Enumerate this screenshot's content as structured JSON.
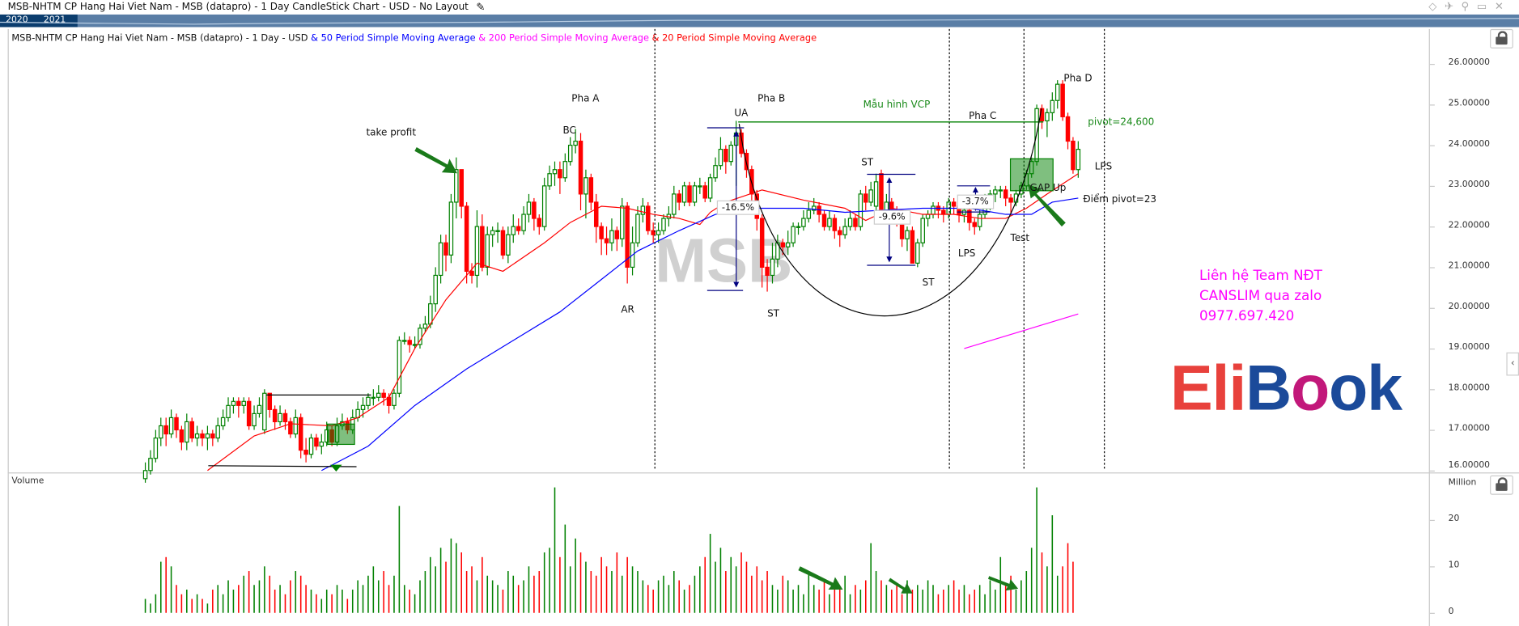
{
  "window": {
    "title": "MSB-NHTM CP Hang Hai Viet Nam - MSB (datapro) - 1 Day CandleStick Chart - USD - No Layout",
    "edit_icon": "pencil-icon",
    "toolbar_icons": [
      "diamond-icon",
      "pin-icon",
      "settings-icon",
      "window-icon",
      "close-icon"
    ]
  },
  "navigator": {
    "years": [
      "2020",
      "2021"
    ]
  },
  "legend": {
    "base": "MSB-NHTM CP Hang Hai Viet Nam - MSB (datapro) - 1 Day - USD",
    "ma50": "& 50 Period Simple Moving Average",
    "ma200": "& 200 Period Simple Moving Average",
    "ma20": "& 20 Period Simple Moving Average"
  },
  "colors": {
    "up": "#008000",
    "down": "#ff0000",
    "ma50": "#0000ff",
    "ma200": "#ff00ff",
    "ma20": "#ff0000",
    "nav_dark": "#0b3d6e",
    "nav": "#5a7ea6",
    "logo_red": "#e8413c",
    "logo_blue": "#1b4a9a",
    "logo_pink": "#c2187a"
  },
  "volume_panel": {
    "label": "Volume",
    "unit": "Million"
  },
  "annotations": {
    "take_profit": "take profit",
    "pha_a": "Pha A",
    "bc": "BC",
    "ar": "AR",
    "pha_b": "Pha B",
    "ua": "UA",
    "st1": "ST",
    "st2": "ST",
    "st3": "ST",
    "vcp": "Mẫu hình VCP",
    "pha_c": "Pha C",
    "pct1": "-16.5%",
    "pct2": "-9.6%",
    "pct3": "-3.7%",
    "lps1": "LPS",
    "test": "Test",
    "gap_up": "GAP Up",
    "pha_d": "Pha D",
    "pivot": "pivot=24,600",
    "lps2": "LPS",
    "pivot23": "Điểm pivot=23"
  },
  "watermark": "MSB",
  "logo": {
    "text": "EliBook",
    "part1": "Eli",
    "part2": "B",
    "part3": "o",
    "part4": "ok"
  },
  "contact": {
    "line1": "Liên hệ Team NĐT",
    "line2": "CANSLIM qua zalo",
    "line3": "0977.697.420"
  },
  "chart_data": {
    "type": "candlestick",
    "title": "MSB-NHTM CP Hang Hai Viet Nam - MSB (datapro) - 1 Day - USD",
    "ylim": [
      16,
      26.6
    ],
    "y_ticks": [
      "26.00000",
      "25.00000",
      "24.00000",
      "23.00000",
      "22.00000",
      "21.00000",
      "20.00000",
      "19.00000",
      "18.00000",
      "17.00000",
      "16.00000"
    ],
    "y_tick_values": [
      26,
      25,
      24,
      23,
      22,
      21,
      20,
      19,
      18,
      17,
      16
    ],
    "volume_ylim": [
      0,
      30
    ],
    "volume_ticks": [
      "20",
      "10",
      "0"
    ],
    "volume_tick_values": [
      20,
      10,
      0
    ],
    "ohlc": [
      [
        15.8,
        16.2,
        15.7,
        16.0
      ],
      [
        16.0,
        16.5,
        15.9,
        16.3
      ],
      [
        16.3,
        17.0,
        16.2,
        16.8
      ],
      [
        16.8,
        17.3,
        16.6,
        17.1
      ],
      [
        17.1,
        17.3,
        16.6,
        16.9
      ],
      [
        16.9,
        17.5,
        16.8,
        17.3
      ],
      [
        17.3,
        17.4,
        16.8,
        17.0
      ],
      [
        17.0,
        17.1,
        16.5,
        16.7
      ],
      [
        16.7,
        17.4,
        16.5,
        17.2
      ],
      [
        17.2,
        17.3,
        16.7,
        16.8
      ],
      [
        16.8,
        17.1,
        16.6,
        16.9
      ],
      [
        16.9,
        17.0,
        16.6,
        16.8
      ],
      [
        16.8,
        17.1,
        16.5,
        16.9
      ],
      [
        16.9,
        17.0,
        16.6,
        16.8
      ],
      [
        16.8,
        17.3,
        16.7,
        17.1
      ],
      [
        17.1,
        17.5,
        17.0,
        17.3
      ],
      [
        17.3,
        17.8,
        17.2,
        17.6
      ],
      [
        17.6,
        17.8,
        17.4,
        17.7
      ],
      [
        17.7,
        17.8,
        17.3,
        17.6
      ],
      [
        17.6,
        17.8,
        17.4,
        17.7
      ],
      [
        17.7,
        17.8,
        17.0,
        17.1
      ],
      [
        17.1,
        17.6,
        17.0,
        17.4
      ],
      [
        17.4,
        17.8,
        17.3,
        17.6
      ],
      [
        17.0,
        18.0,
        16.9,
        17.9
      ],
      [
        17.9,
        17.9,
        17.3,
        17.5
      ],
      [
        17.5,
        17.6,
        17.0,
        17.2
      ],
      [
        17.2,
        17.6,
        17.1,
        17.4
      ],
      [
        17.4,
        17.5,
        17.0,
        17.2
      ],
      [
        17.2,
        17.3,
        16.8,
        16.9
      ],
      [
        16.9,
        17.5,
        16.8,
        17.3
      ],
      [
        17.3,
        17.4,
        16.3,
        16.5
      ],
      [
        16.5,
        16.8,
        16.2,
        16.4
      ],
      [
        16.4,
        16.9,
        16.3,
        16.8
      ],
      [
        16.8,
        16.9,
        16.5,
        16.6
      ],
      [
        16.6,
        16.9,
        16.4,
        16.7
      ],
      [
        16.7,
        17.2,
        16.6,
        17.0
      ],
      [
        17.0,
        17.1,
        16.6,
        16.7
      ],
      [
        16.7,
        17.3,
        16.6,
        17.1
      ],
      [
        17.1,
        17.4,
        17.0,
        17.2
      ],
      [
        17.2,
        17.3,
        16.9,
        17.0
      ],
      [
        17.0,
        17.5,
        16.9,
        17.3
      ],
      [
        17.3,
        17.7,
        17.2,
        17.5
      ],
      [
        17.5,
        17.8,
        17.3,
        17.6
      ],
      [
        17.6,
        17.9,
        17.5,
        17.8
      ],
      [
        17.8,
        18.0,
        17.6,
        17.8
      ],
      [
        17.8,
        18.1,
        17.7,
        17.9
      ],
      [
        17.9,
        18.0,
        17.6,
        17.8
      ],
      [
        17.8,
        17.9,
        17.4,
        17.6
      ],
      [
        17.6,
        18.0,
        17.5,
        17.9
      ],
      [
        17.9,
        19.3,
        17.8,
        19.2
      ],
      [
        19.2,
        19.4,
        19.1,
        19.2
      ],
      [
        19.2,
        19.3,
        18.9,
        19.1
      ],
      [
        19.1,
        19.3,
        19.0,
        19.1
      ],
      [
        19.1,
        19.6,
        19.0,
        19.5
      ],
      [
        19.5,
        19.8,
        19.4,
        19.6
      ],
      [
        19.6,
        20.3,
        19.5,
        20.1
      ],
      [
        20.1,
        21.0,
        19.9,
        20.8
      ],
      [
        20.8,
        21.8,
        20.6,
        21.6
      ],
      [
        21.6,
        21.8,
        20.9,
        21.3
      ],
      [
        21.3,
        22.8,
        21.1,
        22.6
      ],
      [
        22.6,
        23.7,
        22.2,
        23.4
      ],
      [
        23.4,
        23.4,
        22.2,
        22.5
      ],
      [
        22.5,
        22.6,
        20.6,
        20.9
      ],
      [
        20.9,
        21.1,
        20.6,
        20.8
      ],
      [
        20.8,
        22.4,
        20.5,
        22.0
      ],
      [
        22.0,
        22.3,
        20.9,
        21.0
      ],
      [
        21.0,
        22.0,
        20.8,
        21.8
      ],
      [
        21.8,
        22.0,
        21.5,
        21.9
      ],
      [
        21.9,
        22.1,
        21.6,
        21.9
      ],
      [
        21.9,
        22.0,
        21.2,
        21.3
      ],
      [
        21.3,
        22.0,
        21.1,
        21.8
      ],
      [
        21.8,
        22.3,
        21.6,
        22.0
      ],
      [
        22.0,
        22.2,
        21.8,
        21.9
      ],
      [
        21.9,
        22.5,
        21.8,
        22.3
      ],
      [
        22.3,
        22.8,
        22.1,
        22.6
      ],
      [
        22.6,
        22.7,
        21.9,
        22.2
      ],
      [
        22.2,
        22.3,
        21.8,
        22.0
      ],
      [
        22.0,
        23.2,
        21.9,
        23.0
      ],
      [
        23.0,
        23.5,
        22.9,
        23.3
      ],
      [
        23.3,
        23.6,
        23.0,
        23.4
      ],
      [
        23.4,
        23.6,
        22.8,
        23.2
      ],
      [
        23.2,
        23.8,
        23.1,
        23.6
      ],
      [
        23.6,
        24.2,
        23.5,
        24.0
      ],
      [
        24.0,
        24.4,
        23.8,
        24.1
      ],
      [
        24.1,
        24.3,
        22.4,
        22.8
      ],
      [
        22.8,
        23.4,
        22.2,
        23.2
      ],
      [
        23.2,
        23.3,
        22.4,
        22.6
      ],
      [
        22.6,
        22.8,
        21.6,
        22.0
      ],
      [
        22.0,
        22.1,
        21.3,
        21.7
      ],
      [
        21.7,
        22.0,
        21.3,
        21.6
      ],
      [
        21.6,
        22.2,
        21.4,
        21.9
      ],
      [
        21.9,
        22.0,
        21.4,
        21.7
      ],
      [
        21.7,
        22.7,
        21.5,
        22.5
      ],
      [
        22.5,
        22.6,
        20.6,
        21.0
      ],
      [
        21.0,
        22.0,
        20.8,
        21.6
      ],
      [
        21.6,
        22.5,
        21.5,
        22.3
      ],
      [
        22.3,
        22.7,
        22.1,
        22.5
      ],
      [
        22.5,
        22.6,
        21.8,
        21.9
      ],
      [
        21.9,
        22.1,
        21.6,
        21.8
      ],
      [
        21.8,
        22.1,
        21.6,
        21.9
      ],
      [
        21.9,
        22.3,
        21.8,
        22.2
      ],
      [
        22.2,
        22.5,
        22.0,
        22.3
      ],
      [
        22.3,
        23.0,
        22.2,
        22.8
      ],
      [
        22.8,
        22.9,
        22.4,
        22.6
      ],
      [
        22.6,
        23.1,
        22.5,
        23.0
      ],
      [
        23.0,
        23.1,
        22.5,
        22.6
      ],
      [
        22.6,
        23.1,
        22.5,
        23.0
      ],
      [
        23.0,
        23.2,
        22.8,
        23.0
      ],
      [
        23.0,
        23.1,
        22.6,
        22.7
      ],
      [
        22.7,
        23.3,
        22.6,
        23.2
      ],
      [
        23.2,
        23.7,
        23.1,
        23.5
      ],
      [
        23.5,
        24.2,
        23.4,
        23.9
      ],
      [
        23.9,
        24.0,
        23.3,
        23.6
      ],
      [
        23.6,
        24.1,
        23.5,
        24.0
      ],
      [
        24.0,
        24.6,
        23.0,
        24.3
      ],
      [
        24.3,
        24.4,
        23.7,
        23.8
      ],
      [
        23.8,
        23.9,
        23.2,
        23.4
      ],
      [
        23.4,
        23.5,
        22.6,
        22.8
      ],
      [
        22.8,
        22.9,
        21.9,
        22.2
      ],
      [
        22.2,
        22.3,
        20.5,
        21.0
      ],
      [
        21.0,
        21.2,
        20.4,
        20.8
      ],
      [
        20.8,
        21.6,
        20.6,
        21.2
      ],
      [
        21.2,
        21.8,
        21.0,
        21.6
      ],
      [
        21.6,
        21.7,
        21.3,
        21.5
      ],
      [
        21.5,
        21.9,
        21.3,
        21.6
      ],
      [
        21.6,
        22.1,
        21.5,
        22.0
      ],
      [
        22.0,
        22.1,
        21.8,
        22.0
      ],
      [
        22.0,
        22.4,
        21.9,
        22.2
      ],
      [
        22.2,
        22.6,
        22.1,
        22.4
      ],
      [
        22.4,
        22.7,
        22.3,
        22.5
      ],
      [
        22.5,
        22.6,
        22.1,
        22.3
      ],
      [
        22.3,
        22.4,
        21.9,
        22.0
      ],
      [
        22.0,
        22.4,
        21.9,
        22.2
      ],
      [
        22.2,
        22.3,
        21.7,
        21.9
      ],
      [
        21.9,
        22.0,
        21.5,
        21.8
      ],
      [
        21.8,
        22.2,
        21.7,
        22.0
      ],
      [
        22.0,
        22.4,
        21.9,
        22.2
      ],
      [
        22.2,
        22.3,
        21.9,
        22.0
      ],
      [
        22.0,
        22.9,
        21.9,
        22.8
      ],
      [
        22.8,
        23.0,
        22.4,
        22.6
      ],
      [
        22.6,
        23.1,
        22.5,
        22.9
      ],
      [
        22.5,
        23.3,
        22.4,
        23.1
      ],
      [
        23.3,
        23.4,
        22.3,
        22.4
      ],
      [
        22.4,
        22.8,
        22.3,
        22.6
      ],
      [
        22.6,
        22.7,
        22.2,
        22.3
      ],
      [
        22.3,
        22.5,
        22.0,
        22.2
      ],
      [
        22.2,
        22.3,
        21.5,
        21.7
      ],
      [
        21.7,
        22.0,
        21.4,
        21.9
      ],
      [
        21.9,
        22.0,
        21.1,
        21.1
      ],
      [
        21.1,
        21.7,
        21.0,
        21.6
      ],
      [
        21.6,
        22.3,
        21.5,
        22.2
      ],
      [
        22.2,
        22.4,
        22.0,
        22.3
      ],
      [
        22.3,
        22.6,
        22.2,
        22.5
      ],
      [
        22.5,
        22.6,
        22.2,
        22.4
      ],
      [
        22.4,
        22.5,
        22.1,
        22.3
      ],
      [
        22.3,
        22.7,
        22.2,
        22.6
      ],
      [
        22.6,
        22.7,
        22.3,
        22.5
      ],
      [
        22.5,
        22.6,
        22.1,
        22.3
      ],
      [
        22.3,
        22.5,
        22.1,
        22.4
      ],
      [
        22.4,
        22.5,
        21.9,
        22.1
      ],
      [
        22.1,
        22.2,
        21.8,
        22.0
      ],
      [
        22.0,
        22.4,
        21.9,
        22.3
      ],
      [
        22.3,
        22.8,
        22.2,
        22.5
      ],
      [
        22.5,
        22.9,
        22.4,
        22.8
      ],
      [
        22.8,
        23.0,
        22.6,
        22.9
      ],
      [
        22.9,
        23.0,
        22.7,
        22.9
      ],
      [
        22.9,
        23.0,
        22.5,
        22.7
      ],
      [
        22.7,
        22.8,
        22.3,
        22.6
      ],
      [
        22.6,
        22.9,
        22.5,
        22.8
      ],
      [
        22.8,
        23.1,
        22.7,
        23.0
      ],
      [
        23.0,
        23.4,
        22.9,
        23.3
      ],
      [
        23.3,
        23.7,
        23.2,
        23.6
      ],
      [
        23.6,
        25.0,
        23.5,
        24.9
      ],
      [
        24.9,
        25.0,
        24.4,
        24.6
      ],
      [
        24.6,
        24.9,
        24.2,
        24.8
      ],
      [
        24.8,
        25.3,
        24.6,
        25.1
      ],
      [
        25.1,
        25.6,
        24.9,
        25.5
      ],
      [
        25.5,
        25.6,
        24.6,
        24.7
      ],
      [
        24.7,
        24.8,
        23.9,
        24.1
      ],
      [
        24.1,
        24.2,
        23.3,
        23.4
      ],
      [
        23.4,
        24.1,
        23.2,
        23.9
      ]
    ],
    "volume": [
      3,
      2,
      4,
      11,
      12,
      10,
      6,
      4,
      5,
      3,
      4,
      3,
      2,
      5,
      6,
      4,
      7,
      5,
      6,
      8,
      9,
      6,
      7,
      10,
      8,
      5,
      6,
      4,
      7,
      9,
      8,
      6,
      5,
      4,
      3,
      5,
      4,
      6,
      5,
      3,
      5,
      7,
      6,
      8,
      10,
      7,
      9,
      6,
      8,
      23,
      6,
      5,
      4,
      7,
      9,
      12,
      10,
      14,
      11,
      16,
      15,
      13,
      9,
      10,
      7,
      12,
      8,
      7,
      6,
      5,
      9,
      8,
      6,
      7,
      10,
      8,
      9,
      13,
      14,
      27,
      12,
      19,
      10,
      16,
      13,
      11,
      9,
      8,
      12,
      10,
      9,
      13,
      8,
      12,
      10,
      9,
      7,
      6,
      5,
      7,
      8,
      6,
      9,
      7,
      5,
      6,
      8,
      10,
      12,
      17,
      11,
      14,
      9,
      12,
      10,
      13,
      11,
      8,
      10,
      7,
      9,
      6,
      5,
      8,
      7,
      5,
      6,
      4,
      9,
      6,
      5,
      7,
      4,
      6,
      5,
      8,
      4,
      6,
      5,
      7,
      15,
      9,
      7,
      6,
      5,
      6,
      4,
      7,
      5,
      6,
      5,
      7,
      6,
      4,
      5,
      6,
      7,
      5,
      6,
      4,
      5,
      6,
      4,
      7,
      5,
      12,
      6,
      8,
      5,
      7,
      9,
      14,
      27,
      13,
      10,
      21,
      8,
      10,
      15,
      11
    ],
    "ma20": [
      [
        12,
        16.0
      ],
      [
        21,
        16.85
      ],
      [
        28,
        17.15
      ],
      [
        36,
        17.1
      ],
      [
        41,
        17.3
      ],
      [
        47,
        17.8
      ],
      [
        52,
        19.0
      ],
      [
        58,
        20.2
      ],
      [
        64,
        21.1
      ],
      [
        69,
        20.9
      ],
      [
        77,
        21.6
      ],
      [
        82,
        22.1
      ],
      [
        88,
        22.5
      ],
      [
        93,
        22.45
      ],
      [
        98,
        22.3
      ],
      [
        103,
        22.2
      ],
      [
        107,
        22.05
      ],
      [
        109,
        22.35
      ],
      [
        112,
        22.6
      ],
      [
        119,
        22.9
      ],
      [
        127,
        22.65
      ],
      [
        135,
        22.45
      ],
      [
        139,
        22.15
      ],
      [
        144,
        22.45
      ],
      [
        150,
        22.3
      ],
      [
        156,
        22.3
      ],
      [
        161,
        22.2
      ],
      [
        166,
        22.2
      ],
      [
        170,
        22.45
      ],
      [
        174,
        22.8
      ],
      [
        180,
        23.3
      ]
    ],
    "ma50": [
      [
        34,
        16.0
      ],
      [
        43,
        16.6
      ],
      [
        52,
        17.6
      ],
      [
        62,
        18.5
      ],
      [
        71,
        19.2
      ],
      [
        80,
        19.9
      ],
      [
        88,
        20.7
      ],
      [
        95,
        21.4
      ],
      [
        103,
        21.9
      ],
      [
        110,
        22.3
      ],
      [
        118,
        22.45
      ],
      [
        127,
        22.45
      ],
      [
        135,
        22.35
      ],
      [
        142,
        22.4
      ],
      [
        150,
        22.45
      ],
      [
        159,
        22.45
      ],
      [
        166,
        22.3
      ],
      [
        171,
        22.3
      ],
      [
        175,
        22.6
      ],
      [
        180,
        22.7
      ]
    ],
    "ma200": [
      [
        158,
        19.0
      ],
      [
        180,
        19.85
      ]
    ]
  }
}
